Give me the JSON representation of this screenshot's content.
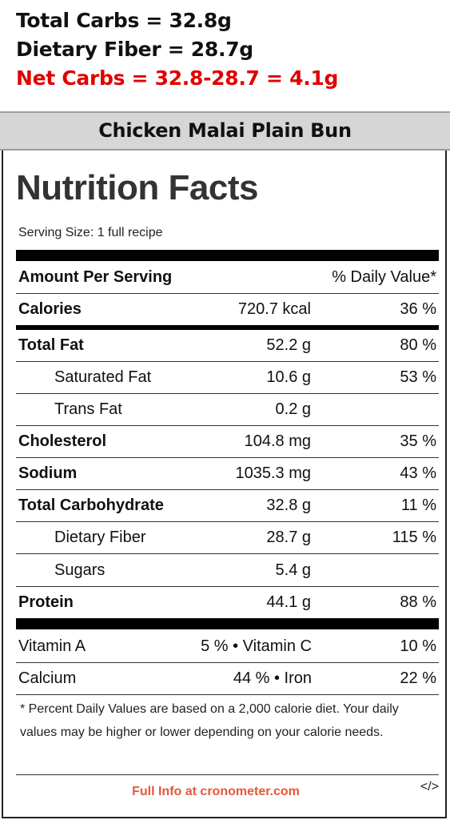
{
  "header": {
    "total_carbs": "Total Carbs = 32.8g",
    "dietary_fiber": "Dietary Fiber = 28.7g",
    "net_carbs": "Net Carbs = 32.8-28.7 = 4.1g",
    "net_color": "#e00000"
  },
  "title": "Chicken Malai Plain Bun",
  "facts": {
    "heading": "Nutrition Facts",
    "serving_size": "Serving Size: 1 full recipe",
    "amount_per_serving": "Amount Per Serving",
    "daily_value_header": "% Daily Value*",
    "rows": [
      {
        "label": "Calories",
        "amount": "720.7 kcal",
        "dv": "36 %"
      },
      {
        "label": "Total Fat",
        "amount": "52.2 g",
        "dv": "80 %"
      },
      {
        "label": "Saturated Fat",
        "amount": "10.6 g",
        "dv": "53 %"
      },
      {
        "label": "Trans Fat",
        "amount": "0.2 g",
        "dv": ""
      },
      {
        "label": "Cholesterol",
        "amount": "104.8 mg",
        "dv": "35 %"
      },
      {
        "label": "Sodium",
        "amount": "1035.3 mg",
        "dv": "43 %"
      },
      {
        "label": "Total Carbohydrate",
        "amount": "32.8 g",
        "dv": "11 %"
      },
      {
        "label": "Dietary Fiber",
        "amount": "28.7 g",
        "dv": "115 %"
      },
      {
        "label": "Sugars",
        "amount": "5.4 g",
        "dv": ""
      },
      {
        "label": "Protein",
        "amount": "44.1 g",
        "dv": "88 %"
      }
    ],
    "vitamins": [
      {
        "left": "Vitamin A",
        "mid": "5 % • Vitamin C",
        "right": "10 %"
      },
      {
        "left": "Calcium",
        "mid": "44 % • Iron",
        "right": "22 %"
      }
    ],
    "footnote": "* Percent Daily Values are based on a 2,000 calorie diet. Your daily values may be higher or lower depending on your calorie needs.",
    "full_info": "Full Info at cronometer.com",
    "embed": "</>",
    "link_color": "#e4583a"
  }
}
